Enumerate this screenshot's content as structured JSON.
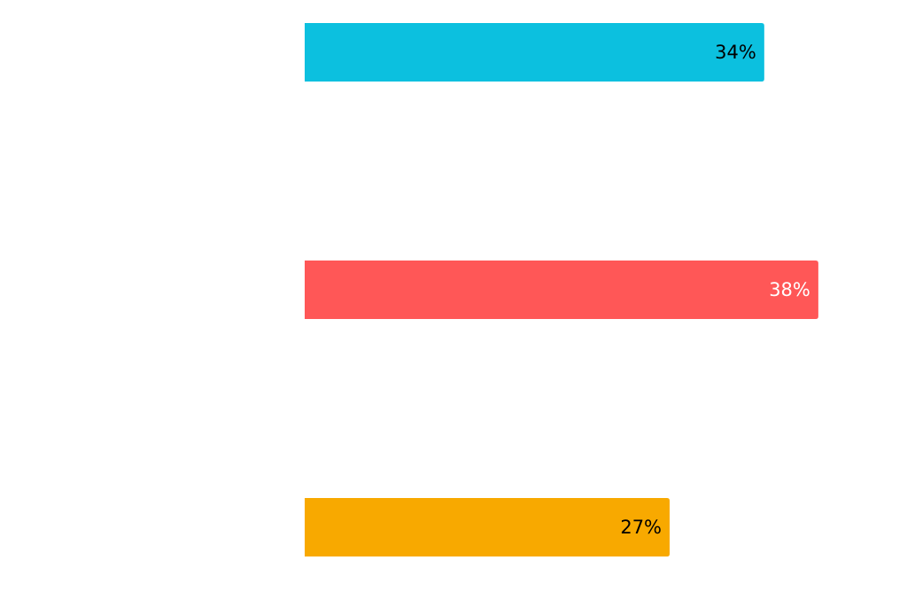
{
  "chart_data": {
    "type": "hbar",
    "categories": [
      null,
      null,
      null
    ],
    "values": [
      34,
      38,
      27
    ],
    "value_labels": [
      "34%",
      "38%",
      "27%"
    ],
    "colors": [
      "#0cc0df",
      "#ff5757",
      "#f8a900"
    ],
    "label_colors": [
      "#000000",
      "#ffffff",
      "#000000"
    ],
    "xlim": [
      0,
      40
    ]
  }
}
